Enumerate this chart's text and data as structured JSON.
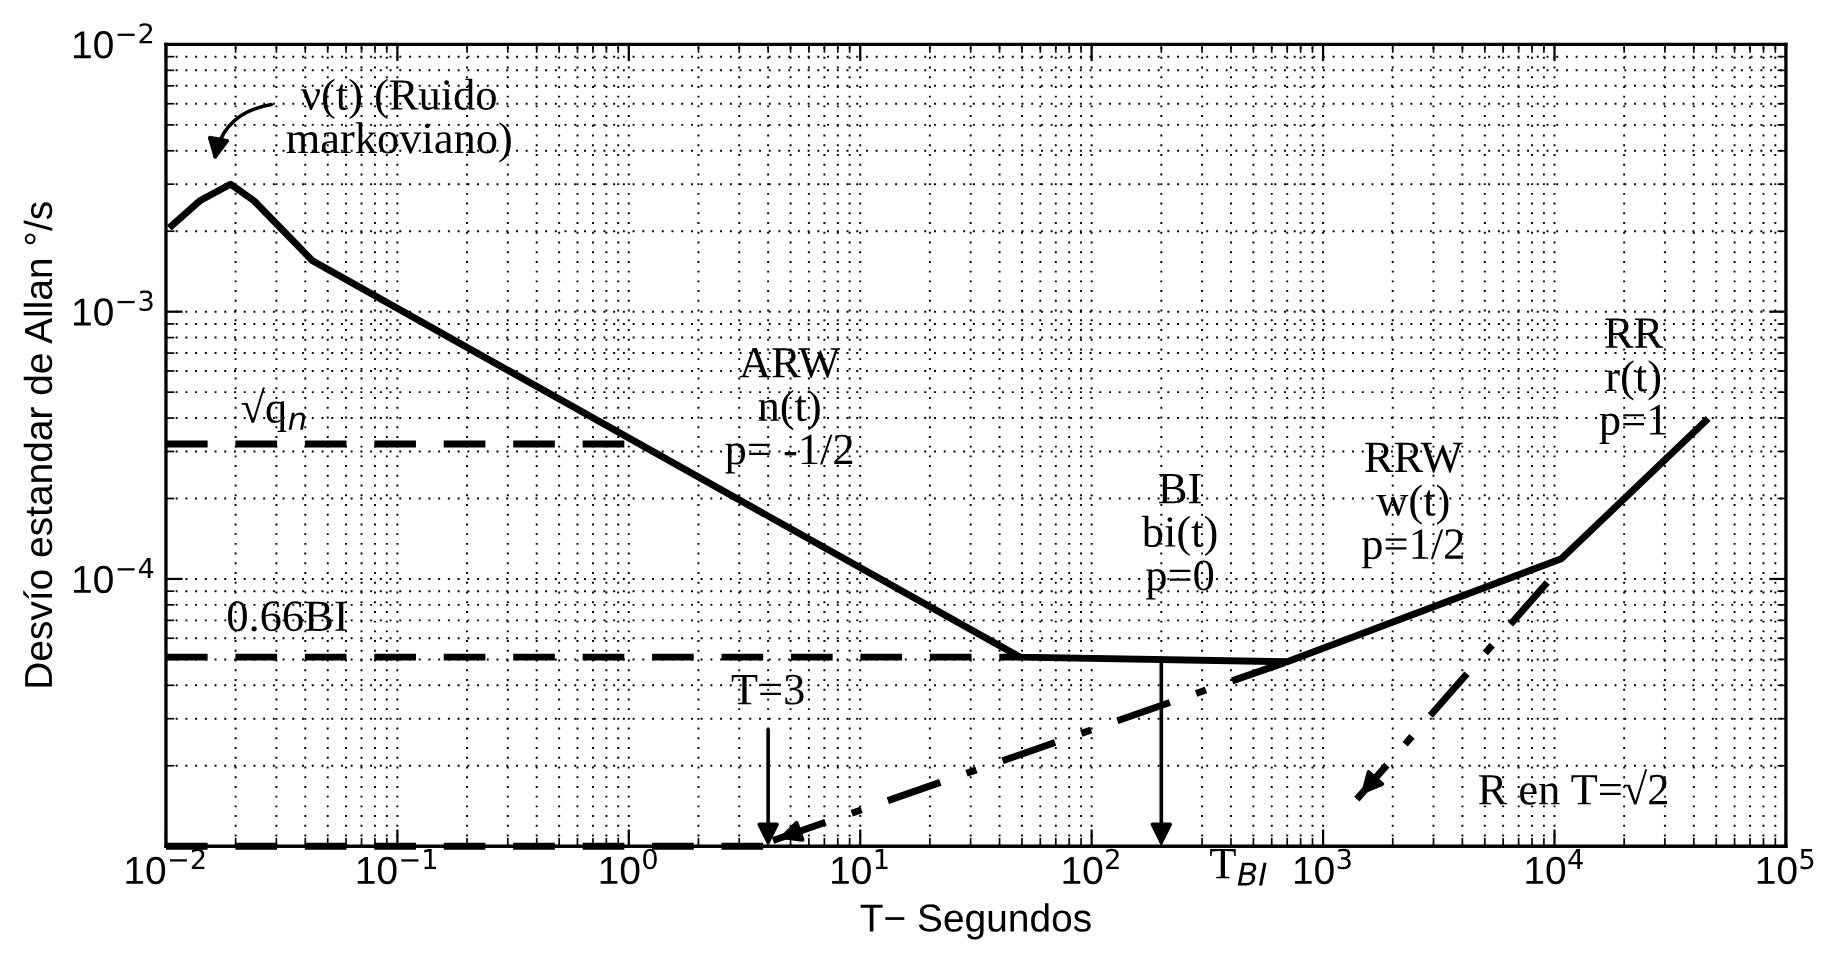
{
  "chart_data": {
    "type": "line",
    "xlabel": "T− Segundos",
    "ylabel": "Desvío estandar de Allan °/s",
    "log": "xy",
    "grid": true,
    "xlim": [
      0.01,
      100000
    ],
    "ylim": [
      1e-05,
      0.01
    ],
    "xticks": [
      {
        "value": 0.01,
        "label": "10$^{−2}$"
      },
      {
        "value": 0.1,
        "label": "10$^{−1}$"
      },
      {
        "value": 1,
        "label": "10$^{0}$"
      },
      {
        "value": 10,
        "label": "10$^{1}$"
      },
      {
        "value": 100,
        "label": "10$^{2}$"
      },
      {
        "value": 1000,
        "label": "10$^{3}$"
      },
      {
        "value": 10000,
        "label": "10$^{4}$"
      },
      {
        "value": 100000,
        "label": "10$^{5}$"
      }
    ],
    "yticks": [
      {
        "value": 1e-05,
        "label": null
      },
      {
        "value": 0.0001,
        "label": "10$^{−4}$"
      },
      {
        "value": 0.001,
        "label": "10$^{−3}$"
      },
      {
        "value": 0.01,
        "label": "10$^{−2}$"
      }
    ],
    "series": [
      {
        "color": "#000000",
        "line_style": "solid",
        "x": [
          0.0106,
          0.014,
          0.019,
          0.024,
          0.043,
          49,
          700,
          10700,
          45000
        ],
        "values": [
          0.0021,
          0.0026,
          0.003,
          0.0026,
          0.00155,
          5.1e-05,
          4.9e-05,
          0.000119,
          0.00039
        ]
      },
      {
        "color": "#000000",
        "line_style": "dashed",
        "x": [
          0.01,
          1
        ],
        "values": [
          0.00032,
          0.00032
        ]
      },
      {
        "color": "#000000",
        "line_style": "dashed",
        "x": [
          0.01,
          49
        ],
        "values": [
          5.1e-05,
          5.1e-05
        ]
      },
      {
        "color": "#000000",
        "line_style": "dashed",
        "x": [
          0.01,
          4
        ],
        "values": [
          1e-05,
          1e-05
        ]
      },
      {
        "color": "#000000",
        "line_style": "dashdot",
        "x": [
          4.2,
          700
        ],
        "values": [
          1.05e-05,
          4.9e-05
        ]
      },
      {
        "color": "#000000",
        "line_style": "dashdot",
        "x": [
          9300,
          1400
        ],
        "values": [
          9.7e-05,
          1.5e-05
        ]
      }
    ],
    "annotations": [
      "ν(t) (Ruido\nmarkoviano)",
      "√q$_{n}$",
      "ARW\nn(t)\np= -1/2",
      "0.66BI",
      "BI\nbi(t)\np=0",
      "RRW\nw(t)\np=1/2",
      "RR\nr(t)\np=1",
      {
        "text": "T=3",
        "x": 4,
        "y": 1e-05
      },
      {
        "text": "T$_{BI}$",
        "x": 200,
        "y": 5e-05
      },
      {
        "text": "R en T=√2",
        "x": 1400,
        "y": 1.5e-05
      }
    ]
  }
}
